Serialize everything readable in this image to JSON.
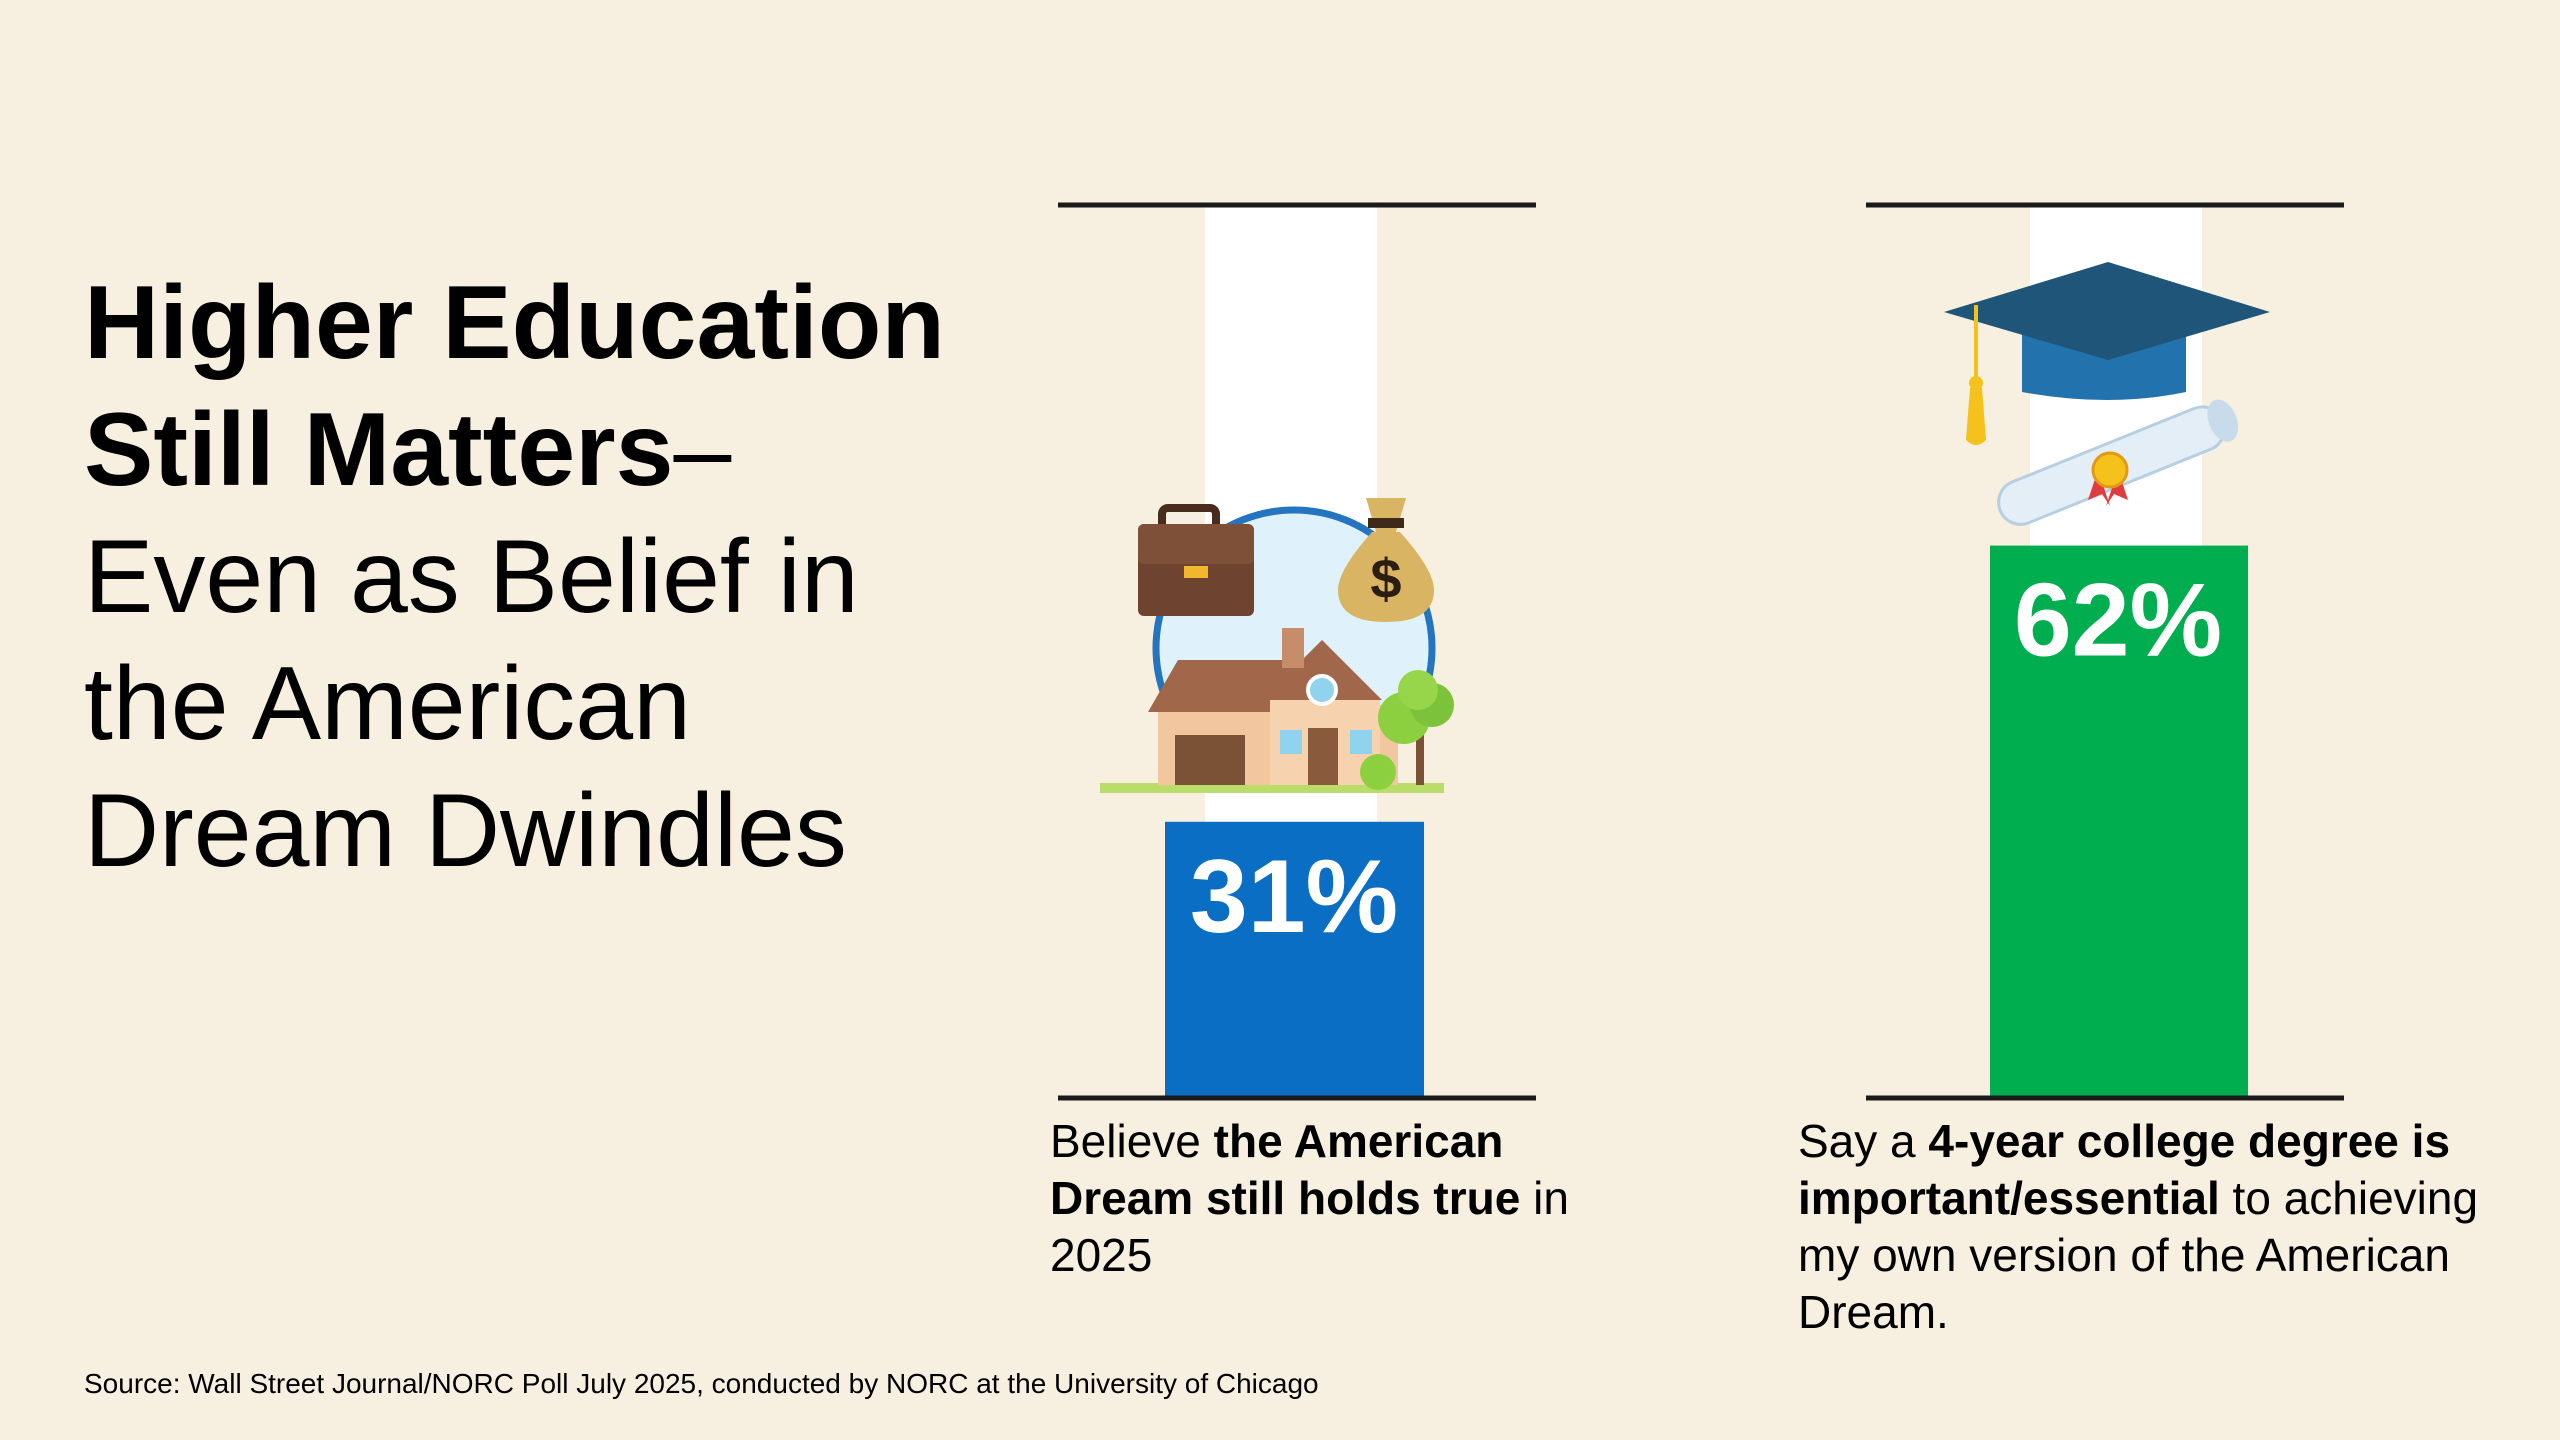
{
  "title": {
    "bold_line_1": "Higher Education",
    "bold_line_2": "Still Matters",
    "dash": "–",
    "line_3": "Even as Belief in",
    "line_4": "the American",
    "line_5": "Dream Dwindles"
  },
  "chart_data": {
    "type": "bar",
    "categories": [
      "American Dream still holds true",
      "4-year college degree important/essential"
    ],
    "values": [
      31,
      62
    ],
    "value_labels": [
      "31%",
      "62%"
    ],
    "ylim": [
      0,
      100
    ],
    "title": "",
    "xlabel": "",
    "ylabel": "",
    "grid": false,
    "colors": [
      "#0a6ec4",
      "#00ad4f"
    ],
    "icons": [
      "house-with-briefcase-and-money-bag-icon",
      "graduation-cap-and-diploma-icon"
    ]
  },
  "captions": {
    "left": {
      "pre": "Believe ",
      "bold": "the American Dream still holds true",
      "post": " in 2025"
    },
    "right": {
      "pre": "Say a ",
      "bold": "4-year college degree is important/essential",
      "post": " to achieving my own version of the American Dream."
    }
  },
  "source": "Source: Wall Street Journal/NORC Poll July 2025, conducted by NORC at the University of Chicago"
}
